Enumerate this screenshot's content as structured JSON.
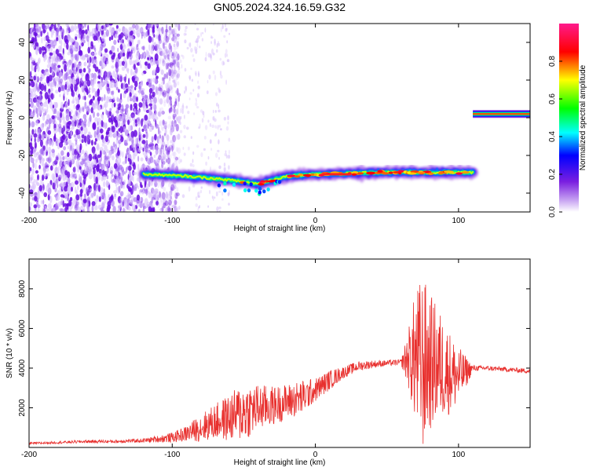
{
  "figure_title": "GN05.2024.324.16.59.G32",
  "chart_data": [
    {
      "type": "heatmap",
      "xlabel": "Height of straight line (km)",
      "ylabel": "Frequency (Hz)",
      "xlim": [
        -200,
        150
      ],
      "ylim": [
        -50,
        50
      ],
      "xticks": [
        -200,
        -100,
        0,
        100
      ],
      "yticks": [
        -40,
        -20,
        0,
        20,
        40
      ],
      "colorbar": {
        "label": "Normalized spectral amplitude",
        "range": [
          0,
          1
        ],
        "ticks": [
          0.0,
          0.2,
          0.4,
          0.6,
          0.8
        ],
        "colormap": [
          "#ffffff",
          "#8a2be2",
          "#0000ff",
          "#00ffff",
          "#00ff00",
          "#ffff00",
          "#ff0000",
          "#ff1493"
        ]
      },
      "features": [
        {
          "name": "noise",
          "x_range": [
            -200,
            -95
          ],
          "y_range": [
            -50,
            50
          ],
          "amplitude": 0.1
        },
        {
          "name": "main_trace",
          "points": [
            [
              -120,
              -30
            ],
            [
              -90,
              -31
            ],
            [
              -60,
              -33
            ],
            [
              -40,
              -35
            ],
            [
              -20,
              -31
            ],
            [
              0,
              -30
            ],
            [
              50,
              -29
            ],
            [
              110,
              -29
            ]
          ],
          "amplitude": 0.85
        },
        {
          "name": "upper_trace",
          "x_range": [
            110,
            150
          ],
          "y": 2,
          "amplitude": 0.9
        }
      ]
    },
    {
      "type": "line",
      "xlabel": "Height of straight line (km)",
      "ylabel": "SNR (10 * v/v)",
      "xlim": [
        -200,
        150
      ],
      "ylim": [
        0,
        9500
      ],
      "xticks": [
        -200,
        -100,
        0,
        100
      ],
      "yticks": [
        2000,
        4000,
        6000,
        8000
      ],
      "color": "#e8302e",
      "series": [
        {
          "x": [
            -200,
            -180,
            -160,
            -140,
            -120,
            -100,
            -90,
            -80,
            -70,
            -60,
            -50,
            -40,
            -30,
            -20,
            -10,
            0,
            10,
            20,
            30,
            40,
            50,
            60,
            65,
            70,
            75,
            80,
            85,
            90,
            95,
            100,
            110,
            120,
            130,
            140,
            150
          ],
          "values": [
            200,
            250,
            300,
            300,
            350,
            500,
            700,
            1000,
            1300,
            1500,
            1800,
            2000,
            2100,
            2300,
            2500,
            2900,
            3400,
            3800,
            4100,
            4200,
            4250,
            4300,
            4500,
            4500,
            4200,
            4300,
            4200,
            4000,
            3700,
            3600,
            4000,
            4000,
            3950,
            3900,
            3850
          ],
          "spread": [
            60,
            60,
            80,
            80,
            100,
            250,
            400,
            700,
            900,
            1200,
            1500,
            1200,
            1000,
            900,
            900,
            600,
            500,
            300,
            250,
            200,
            150,
            150,
            1500,
            3500,
            4500,
            3500,
            3000,
            2500,
            2000,
            1500,
            150,
            120,
            120,
            120,
            120
          ]
        }
      ]
    }
  ]
}
